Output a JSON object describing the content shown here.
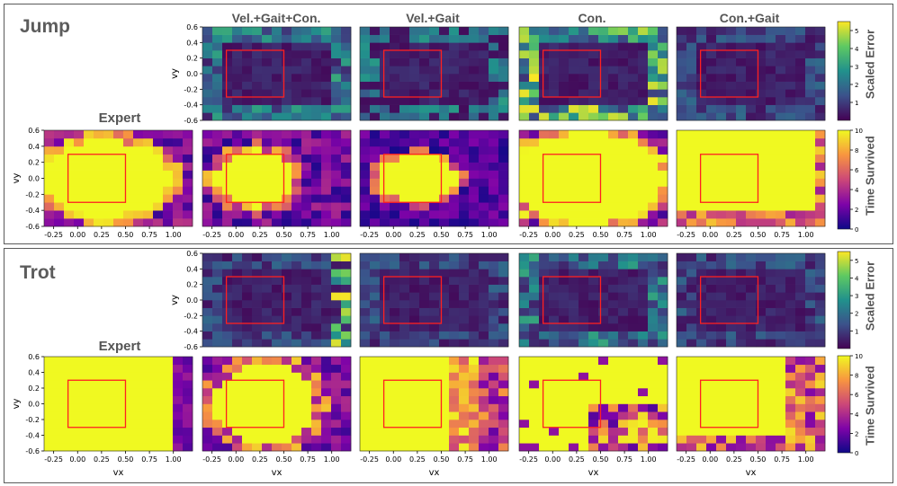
{
  "sections": [
    {
      "name": "jump",
      "title": "Jump",
      "expert_label": "Expert"
    },
    {
      "name": "trot",
      "title": "Trot",
      "expert_label": "Expert"
    }
  ],
  "column_titles": [
    "Vel.+Gait+Con.",
    "Vel.+Gait",
    "Con.",
    "Con.+Gait"
  ],
  "colorbars": {
    "error_label": "Scaled Error",
    "time_label": "Time Survived",
    "error_ticks": [
      "1",
      "2",
      "3",
      "4",
      "5"
    ],
    "time_ticks": [
      "0",
      "2",
      "4",
      "6",
      "8",
      "10"
    ]
  },
  "axes": {
    "x_ticks": [
      "-0.25",
      "0.00",
      "0.25",
      "0.50",
      "0.75",
      "1.00"
    ],
    "y_ticks": [
      "0.6",
      "0.4",
      "0.2",
      "0.0",
      "-0.2",
      "-0.4",
      "-0.6"
    ],
    "xlabel": "vx",
    "ylabel": "vy"
  },
  "chart_data": [
    {
      "type": "heatmap",
      "section": "Jump",
      "panel": "Vel.+Gait+Con.",
      "metric": "Scaled Error",
      "x_range": [
        -0.3,
        1.1
      ],
      "y_range": [
        -0.6,
        0.6
      ],
      "colorbar_range": [
        0,
        5.5
      ]
    },
    {
      "type": "heatmap",
      "section": "Jump",
      "panel": "Vel.+Gait",
      "metric": "Scaled Error",
      "x_range": [
        -0.3,
        1.1
      ],
      "y_range": [
        -0.6,
        0.6
      ]
    },
    {
      "type": "heatmap",
      "section": "Jump",
      "panel": "Con.",
      "metric": "Scaled Error",
      "x_range": [
        -0.3,
        1.1
      ],
      "y_range": [
        -0.6,
        0.6
      ]
    },
    {
      "type": "heatmap",
      "section": "Jump",
      "panel": "Con.+Gait",
      "metric": "Scaled Error",
      "x_range": [
        -0.3,
        1.1
      ],
      "y_range": [
        -0.6,
        0.6
      ]
    },
    {
      "type": "heatmap",
      "section": "Jump",
      "panel": "Expert",
      "metric": "Time Survived",
      "x_range": [
        -0.3,
        1.1
      ],
      "y_range": [
        -0.6,
        0.6
      ],
      "colorbar_range": [
        0,
        10
      ]
    },
    {
      "type": "heatmap",
      "section": "Jump",
      "panel": "Vel.+Gait+Con.",
      "metric": "Time Survived"
    },
    {
      "type": "heatmap",
      "section": "Jump",
      "panel": "Vel.+Gait",
      "metric": "Time Survived"
    },
    {
      "type": "heatmap",
      "section": "Jump",
      "panel": "Con.",
      "metric": "Time Survived"
    },
    {
      "type": "heatmap",
      "section": "Jump",
      "panel": "Con.+Gait",
      "metric": "Time Survived"
    },
    {
      "type": "heatmap",
      "section": "Trot",
      "panel": "Vel.+Gait+Con.",
      "metric": "Scaled Error"
    },
    {
      "type": "heatmap",
      "section": "Trot",
      "panel": "Vel.+Gait",
      "metric": "Scaled Error"
    },
    {
      "type": "heatmap",
      "section": "Trot",
      "panel": "Con.",
      "metric": "Scaled Error"
    },
    {
      "type": "heatmap",
      "section": "Trot",
      "panel": "Con.+Gait",
      "metric": "Scaled Error"
    },
    {
      "type": "heatmap",
      "section": "Trot",
      "panel": "Expert",
      "metric": "Time Survived"
    },
    {
      "type": "heatmap",
      "section": "Trot",
      "panel": "Vel.+Gait+Con.",
      "metric": "Time Survived"
    },
    {
      "type": "heatmap",
      "section": "Trot",
      "panel": "Vel.+Gait",
      "metric": "Time Survived"
    },
    {
      "type": "heatmap",
      "section": "Trot",
      "panel": "Con.",
      "metric": "Time Survived"
    },
    {
      "type": "heatmap",
      "section": "Trot",
      "panel": "Con.+Gait",
      "metric": "Time Survived"
    }
  ],
  "training_box": {
    "vx_range": [
      -0.1,
      0.5
    ],
    "vy_range": [
      -0.3,
      0.3
    ],
    "color": "#ff2020"
  },
  "colors": {
    "error_colormap": "viridis",
    "time_colormap": "plasma",
    "border": "#5a5a5a"
  }
}
